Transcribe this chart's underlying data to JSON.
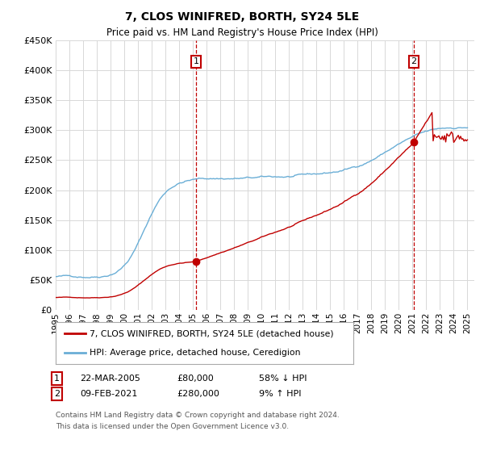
{
  "title": "7, CLOS WINIFRED, BORTH, SY24 5LE",
  "subtitle": "Price paid vs. HM Land Registry's House Price Index (HPI)",
  "footer_line1": "Contains HM Land Registry data © Crown copyright and database right 2024.",
  "footer_line2": "This data is licensed under the Open Government Licence v3.0.",
  "legend_entry1": "7, CLOS WINIFRED, BORTH, SY24 5LE (detached house)",
  "legend_entry2": "HPI: Average price, detached house, Ceredigion",
  "annotation1_date": "22-MAR-2005",
  "annotation1_price": "£80,000",
  "annotation1_hpi": "58% ↓ HPI",
  "annotation2_date": "09-FEB-2021",
  "annotation2_price": "£280,000",
  "annotation2_hpi": "9% ↑ HPI",
  "hpi_color": "#6aaed6",
  "price_color": "#c00000",
  "dashed_color": "#c00000",
  "ylim": [
    0,
    450000
  ],
  "yticks": [
    0,
    50000,
    100000,
    150000,
    200000,
    250000,
    300000,
    350000,
    400000,
    450000
  ],
  "bg_color": "#ffffff",
  "grid_color": "#d8d8d8",
  "sale1_year": 2005.22,
  "sale1_val": 80000,
  "sale2_year": 2021.1,
  "sale2_val": 280000,
  "xmin": 1995,
  "xmax": 2025
}
